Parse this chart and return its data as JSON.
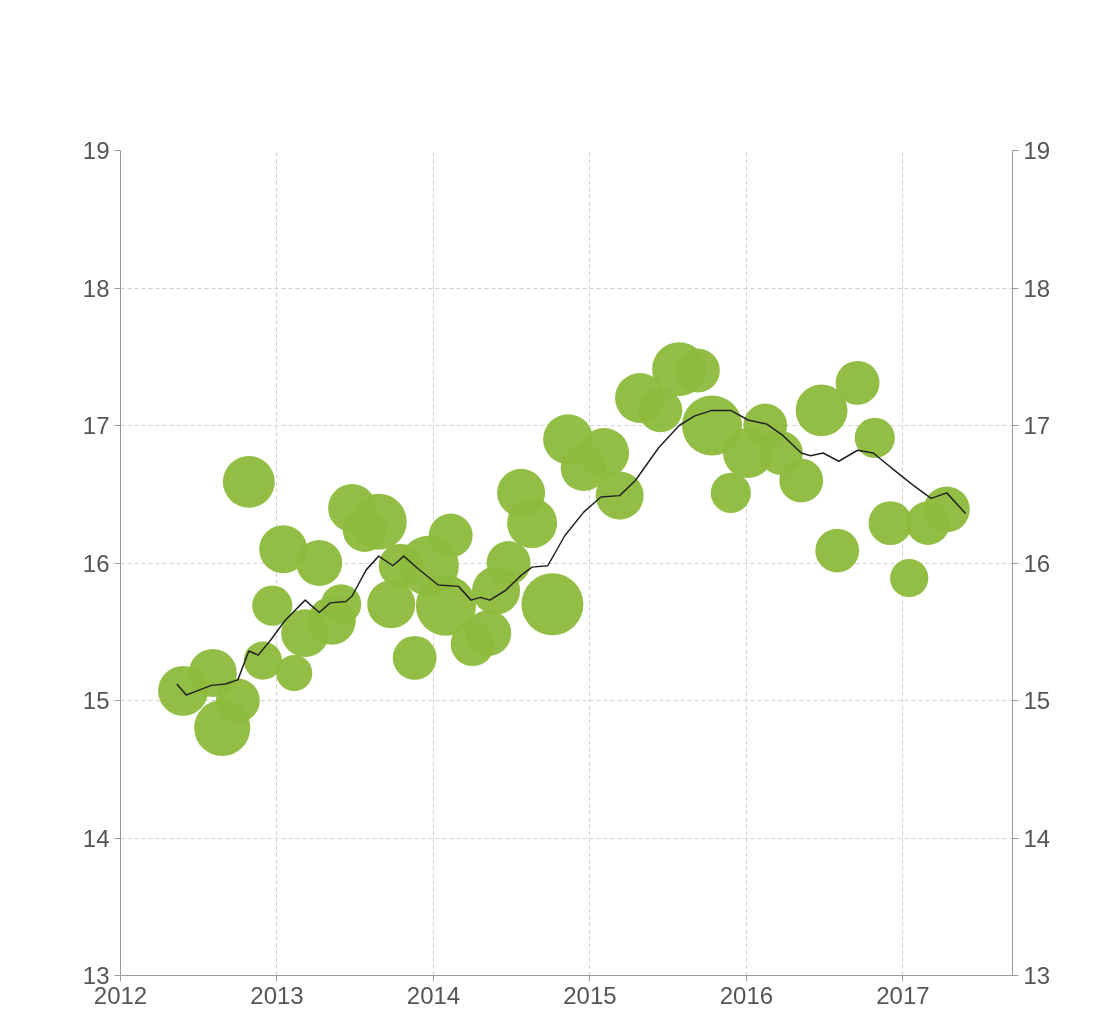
{
  "chart_data": {
    "type": "bubble",
    "xlim": [
      2012,
      2017.7
    ],
    "xticks": [
      2012,
      2013,
      2014,
      2015,
      2016,
      2017
    ],
    "ylim": [
      13,
      19
    ],
    "yticks": [
      13,
      14,
      15,
      16,
      17,
      18,
      19
    ],
    "y2lim": [
      13,
      19
    ],
    "y2ticks": [
      13,
      14,
      15,
      16,
      17,
      18,
      19
    ],
    "grid": true,
    "series": [
      {
        "color": "#8dbb3c",
        "x": [
          2012.4,
          2012.59,
          2012.65,
          2012.75,
          2012.82,
          2012.91,
          2012.97,
          2013.04,
          2013.11,
          2013.18,
          2013.27,
          2013.35,
          2013.41,
          2013.48,
          2013.56,
          2013.65,
          2013.73,
          2013.79,
          2013.88,
          2013.97,
          2014.11,
          2014.08,
          2014.25,
          2014.35,
          2014.4,
          2014.48,
          2014.56,
          2014.63,
          2014.76,
          2014.86,
          2014.96,
          2015.09,
          2015.19,
          2015.32,
          2015.45,
          2015.57,
          2015.69,
          2015.78,
          2015.9,
          2016.01,
          2016.12,
          2016.22,
          2016.35,
          2016.48,
          2016.58,
          2016.71,
          2016.82,
          2016.92,
          2017.04,
          2017.16,
          2017.28
        ],
        "values": [
          15.07,
          15.2,
          14.8,
          15.0,
          16.59,
          15.29,
          15.69,
          16.1,
          15.2,
          15.49,
          16.0,
          15.58,
          15.7,
          16.4,
          16.24,
          16.3,
          15.7,
          15.98,
          15.31,
          15.98,
          16.2,
          15.69,
          15.41,
          15.49,
          15.8,
          16.0,
          16.51,
          16.29,
          15.7,
          16.9,
          16.69,
          16.8,
          16.49,
          17.2,
          17.11,
          17.41,
          17.4,
          17.0,
          16.51,
          16.8,
          17.0,
          16.8,
          16.6,
          17.11,
          16.09,
          17.31,
          16.91,
          16.29,
          15.89,
          16.29,
          16.39
        ],
        "sizes": [
          0.65,
          0.6,
          0.82,
          0.5,
          0.7,
          0.38,
          0.42,
          0.6,
          0.34,
          0.6,
          0.55,
          0.6,
          0.42,
          0.6,
          0.5,
          0.82,
          0.6,
          0.5,
          0.5,
          0.94,
          0.5,
          0.94,
          0.5,
          0.55,
          0.6,
          0.5,
          0.6,
          0.65,
          1,
          0.65,
          0.55,
          0.65,
          0.6,
          0.65,
          0.5,
          0.76,
          0.5,
          0.94,
          0.42,
          0.65,
          0.5,
          0.5,
          0.5,
          0.7,
          0.5,
          0.5,
          0.42,
          0.5,
          0.38,
          0.5,
          0.55
        ]
      },
      {
        "type": "line",
        "color": "#222222",
        "x": [
          2012.36,
          2012.42,
          2012.49,
          2012.58,
          2012.67,
          2012.75,
          2012.82,
          2012.88,
          2012.96,
          2013.05,
          2013.18,
          2013.27,
          2013.34,
          2013.44,
          2013.48,
          2013.57,
          2013.65,
          2013.74,
          2013.81,
          2013.9,
          2014.03,
          2014.16,
          2014.24,
          2014.3,
          2014.36,
          2014.46,
          2014.56,
          2014.63,
          2014.73,
          2014.84,
          2014.96,
          2015.07,
          2015.19,
          2015.29,
          2015.44,
          2015.57,
          2015.67,
          2015.78,
          2015.9,
          2016.01,
          2016.13,
          2016.23,
          2016.35,
          2016.41,
          2016.49,
          2016.59,
          2016.71,
          2016.81,
          2016.95,
          2017.06,
          2017.18,
          2017.28,
          2017.4
        ],
        "values": [
          15.12,
          15.04,
          15.07,
          15.11,
          15.12,
          15.15,
          15.36,
          15.33,
          15.44,
          15.58,
          15.73,
          15.64,
          15.71,
          15.72,
          15.76,
          15.95,
          16.05,
          15.98,
          16.05,
          15.96,
          15.84,
          15.83,
          15.73,
          15.75,
          15.73,
          15.8,
          15.91,
          15.97,
          15.98,
          16.2,
          16.37,
          16.48,
          16.49,
          16.6,
          16.84,
          17.0,
          17.07,
          17.11,
          17.11,
          17.04,
          17.01,
          16.93,
          16.8,
          16.78,
          16.8,
          16.74,
          16.82,
          16.8,
          16.67,
          16.57,
          16.47,
          16.51,
          16.36
        ]
      }
    ]
  }
}
